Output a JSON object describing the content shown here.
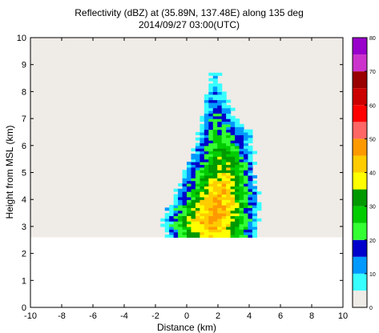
{
  "chart_data": {
    "type": "heatmap",
    "title": "Reflectivity (dBZ) at (35.89N, 137.48E) along 135 deg",
    "subtitle": "2014/09/27 03:00(UTC)",
    "xlabel": "Distance (km)",
    "ylabel": "Height from MSL (km)",
    "xlim": [
      -10,
      10
    ],
    "ylim": [
      0,
      10
    ],
    "xticks": [
      "-10",
      "-8",
      "-6",
      "-4",
      "-2",
      "0",
      "2",
      "4",
      "6",
      "8",
      "10"
    ],
    "yticks": [
      "0",
      "1",
      "2",
      "3",
      "4",
      "5",
      "6",
      "7",
      "8",
      "9",
      "10"
    ],
    "grid": false,
    "missing_region": {
      "y_from": 2.6,
      "y_to": 10,
      "color": "#efebe7"
    },
    "cell_size": {
      "dx": 0.28,
      "dy": 0.1
    },
    "colorbar": {
      "ticks": [
        "0",
        "10",
        "20",
        "30",
        "40",
        "50",
        "60",
        "70",
        "80"
      ],
      "levels": [
        {
          "min": 0,
          "max": 5,
          "color": "#efebe7"
        },
        {
          "min": 5,
          "max": 10,
          "color": "#38ffff"
        },
        {
          "min": 10,
          "max": 15,
          "color": "#0099ff"
        },
        {
          "min": 15,
          "max": 20,
          "color": "#0000cc"
        },
        {
          "min": 20,
          "max": 25,
          "color": "#33ff33"
        },
        {
          "min": 25,
          "max": 30,
          "color": "#00cc00"
        },
        {
          "min": 30,
          "max": 35,
          "color": "#009900"
        },
        {
          "min": 35,
          "max": 40,
          "color": "#ffff00"
        },
        {
          "min": 40,
          "max": 45,
          "color": "#ffcc00"
        },
        {
          "min": 45,
          "max": 50,
          "color": "#ff9900"
        },
        {
          "min": 50,
          "max": 55,
          "color": "#ff6666"
        },
        {
          "min": 55,
          "max": 60,
          "color": "#ff0000"
        },
        {
          "min": 60,
          "max": 65,
          "color": "#cc0000"
        },
        {
          "min": 65,
          "max": 70,
          "color": "#990000"
        },
        {
          "min": 70,
          "max": 75,
          "color": "#cc33cc"
        },
        {
          "min": 75,
          "max": 80,
          "color": "#9900cc"
        }
      ]
    },
    "echo_profile": [
      {
        "y": 2.7,
        "x0": -1.2,
        "x1": 4.3,
        "core_x": 1.7,
        "peak": 40
      },
      {
        "y": 3.0,
        "x0": -1.5,
        "x1": 4.6,
        "core_x": 1.7,
        "peak": 45
      },
      {
        "y": 3.5,
        "x0": -1.4,
        "x1": 4.6,
        "core_x": 1.8,
        "peak": 46
      },
      {
        "y": 4.0,
        "x0": -0.9,
        "x1": 4.6,
        "core_x": 2.0,
        "peak": 45
      },
      {
        "y": 4.5,
        "x0": -0.5,
        "x1": 4.5,
        "core_x": 2.3,
        "peak": 42
      },
      {
        "y": 5.0,
        "x0": -0.3,
        "x1": 4.3,
        "core_x": 2.6,
        "peak": 38
      },
      {
        "y": 5.5,
        "x0": 0.2,
        "x1": 4.3,
        "core_x": 2.5,
        "peak": 33
      },
      {
        "y": 6.0,
        "x0": 0.5,
        "x1": 4.2,
        "core_x": 2.2,
        "peak": 28
      },
      {
        "y": 6.5,
        "x0": 0.8,
        "x1": 4.1,
        "core_x": 1.9,
        "peak": 24
      },
      {
        "y": 7.0,
        "x0": 1.0,
        "x1": 3.2,
        "core_x": 1.8,
        "peak": 20
      },
      {
        "y": 7.5,
        "x0": 1.1,
        "x1": 2.7,
        "core_x": 1.8,
        "peak": 16
      },
      {
        "y": 8.0,
        "x0": 1.3,
        "x1": 2.3,
        "core_x": 1.8,
        "peak": 12
      },
      {
        "y": 8.5,
        "x0": 1.6,
        "x1": 2.0,
        "core_x": 1.8,
        "peak": 8
      }
    ]
  }
}
